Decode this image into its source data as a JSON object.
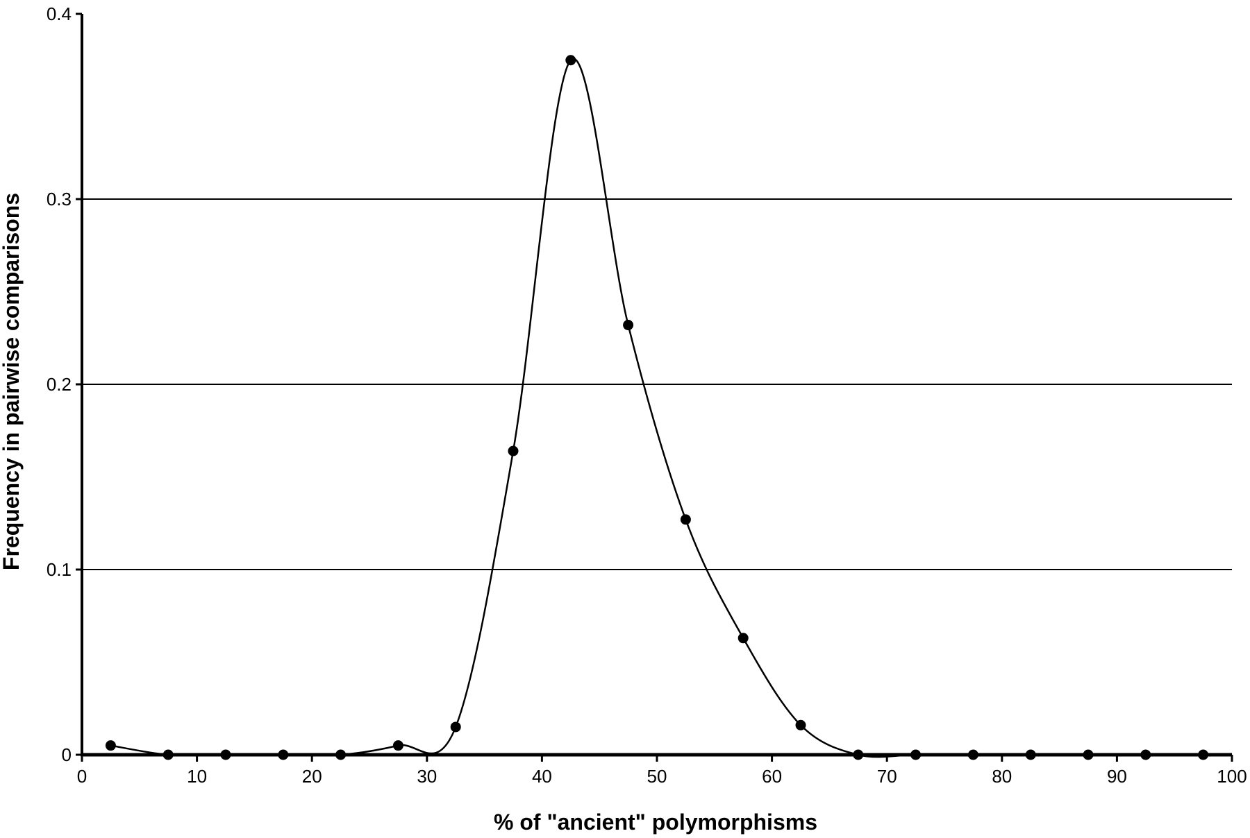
{
  "chart_data": {
    "type": "line",
    "title": "",
    "xlabel": "% of \"ancient\" polymorphisms",
    "ylabel": "Frequency in pairwise comparisons",
    "xlim": [
      0,
      100
    ],
    "ylim": [
      0,
      0.4
    ],
    "x_ticks": [
      0,
      10,
      20,
      30,
      40,
      50,
      60,
      70,
      80,
      90,
      100
    ],
    "x_tick_labels": [
      "0",
      "10",
      "20",
      "30",
      "40",
      "50",
      "60",
      "70",
      "80",
      "90",
      "100"
    ],
    "y_ticks": [
      0,
      0.1,
      0.2,
      0.3,
      0.4
    ],
    "y_tick_labels": [
      "0",
      "0.1",
      "0.2",
      "0.3",
      "0.4"
    ],
    "grid": "horizontal",
    "legend": "none",
    "smoothed": true,
    "marker": "circle",
    "colors": {
      "line": "#000000",
      "marker": "#000000",
      "grid": "#000000",
      "axis": "#000000",
      "background": "#ffffff"
    },
    "series": [
      {
        "x": [
          2.5,
          7.5,
          12.5,
          17.5,
          22.5,
          27.5,
          32.5,
          37.5,
          42.5,
          47.5,
          52.5,
          57.5,
          62.5,
          67.5,
          72.5,
          77.5,
          82.5,
          87.5,
          92.5,
          97.5
        ],
        "y": [
          0.005,
          0.0,
          0.0,
          0.0,
          0.0,
          0.005,
          0.015,
          0.164,
          0.375,
          0.232,
          0.127,
          0.063,
          0.016,
          0.0,
          0.0,
          0.0,
          0.0,
          0.0,
          0.0,
          0.0
        ]
      }
    ]
  }
}
